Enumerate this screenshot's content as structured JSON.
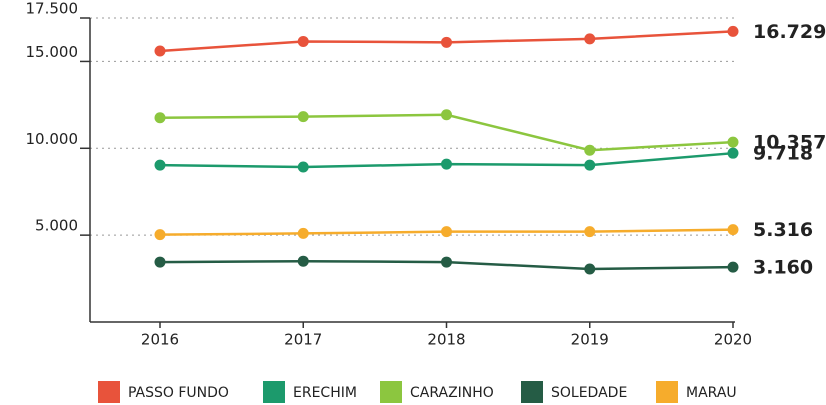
{
  "chart_data": {
    "type": "line",
    "categories": [
      "2016",
      "2017",
      "2018",
      "2019",
      "2020"
    ],
    "ylim": [
      0,
      17500
    ],
    "yticks": [
      {
        "value": 5000,
        "label": "5.000"
      },
      {
        "value": 10000,
        "label": "10.000"
      },
      {
        "value": 15000,
        "label": "15.000"
      },
      {
        "value": 17500,
        "label": "17.500"
      }
    ],
    "grid": true,
    "legend": "bottom",
    "series": [
      {
        "name": "PASSO FUNDO",
        "color": "#e8533b",
        "values": [
          15600,
          16150,
          16100,
          16300,
          16729
        ],
        "value_labels": [
          null,
          null,
          null,
          null,
          "16.729"
        ]
      },
      {
        "name": "ERECHIM",
        "color": "#1c9a6c",
        "values": [
          9030,
          8920,
          9090,
          9030,
          9718
        ],
        "value_labels": [
          null,
          null,
          null,
          null,
          "9.718"
        ]
      },
      {
        "name": "CARAZINHO",
        "color": "#8cc63f",
        "values": [
          11760,
          11820,
          11930,
          9890,
          10357
        ],
        "value_labels": [
          null,
          null,
          null,
          null,
          "10.357"
        ]
      },
      {
        "name": "SOLEDADE",
        "color": "#255c45",
        "values": [
          3450,
          3500,
          3450,
          3050,
          3160
        ],
        "value_labels": [
          null,
          null,
          null,
          null,
          "3.160"
        ]
      },
      {
        "name": "MARAU",
        "color": "#f6ac2c",
        "values": [
          5030,
          5100,
          5200,
          5200,
          5316
        ],
        "value_labels": [
          null,
          null,
          null,
          null,
          "5.316"
        ]
      }
    ]
  }
}
